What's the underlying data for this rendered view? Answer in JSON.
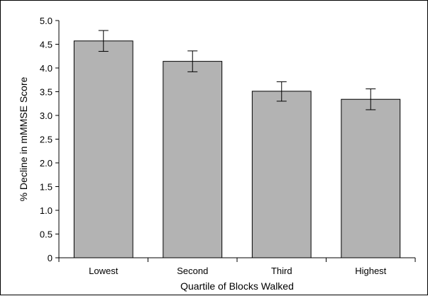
{
  "chart_data": {
    "type": "bar",
    "categories": [
      "Lowest",
      "Second",
      "Third",
      "Highest"
    ],
    "values": [
      4.57,
      4.14,
      3.51,
      3.34
    ],
    "error_low": [
      4.35,
      3.92,
      3.3,
      3.12
    ],
    "error_high": [
      4.79,
      4.36,
      3.71,
      3.56
    ],
    "xlabel": "Quartile of Blocks Walked",
    "ylabel": "% Decline in mMMSE Score",
    "ylim": [
      0,
      5.0
    ],
    "yticks": [
      "0",
      "0.5",
      "1.0",
      "1.5",
      "2.0",
      "2.5",
      "3.0",
      "3.5",
      "4.0",
      "4.5",
      "5.0"
    ],
    "grid": false,
    "legend": "none",
    "bar_color": "#b3b3b3",
    "bar_edge_color": "#000000"
  }
}
